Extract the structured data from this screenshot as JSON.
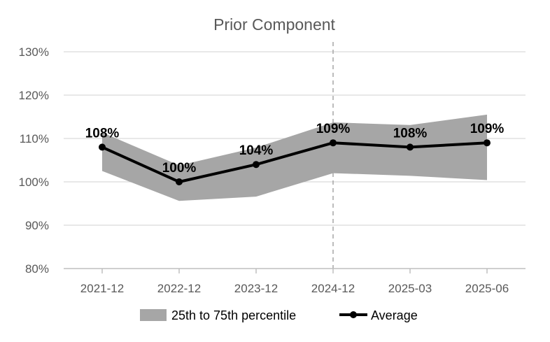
{
  "chart_data": {
    "type": "line",
    "title": "Prior Component",
    "categories": [
      "2021-12",
      "2022-12",
      "2023-12",
      "2024-12",
      "2025-03",
      "2025-06"
    ],
    "series": [
      {
        "name": "Average",
        "values": [
          108,
          100,
          104,
          109,
          108,
          109
        ],
        "labels": [
          "108%",
          "100%",
          "104%",
          "109%",
          "108%",
          "109%"
        ],
        "color": "#000000"
      }
    ],
    "band": {
      "name": "25th to 75th percentile",
      "lower": [
        102.5,
        95.6,
        96.6,
        102,
        101.4,
        100.4
      ],
      "upper": [
        111.4,
        103.8,
        107.9,
        113.7,
        113.1,
        115.5
      ],
      "color": "#a6a6a6"
    },
    "y_ticks": [
      "80%",
      "90%",
      "100%",
      "110%",
      "120%",
      "130%"
    ],
    "ylim": [
      80,
      130
    ],
    "y_tick_values": [
      80,
      90,
      100,
      110,
      120,
      130
    ],
    "vertical_marker_category": "2024-12",
    "grid": true,
    "legend_position": "bottom",
    "xlabel": "",
    "ylabel": ""
  }
}
